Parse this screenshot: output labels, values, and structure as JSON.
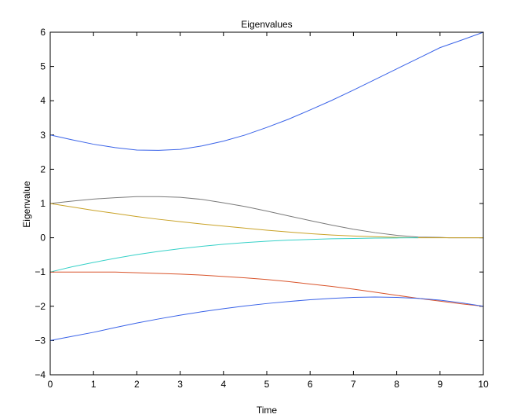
{
  "chart_data": {
    "type": "line",
    "title": "Eigenvalues",
    "xlabel": "Time",
    "ylabel": "Eigenvalue",
    "xlim": [
      0,
      10
    ],
    "ylim": [
      -4,
      6
    ],
    "xticks": [
      0,
      1,
      2,
      3,
      4,
      5,
      6,
      7,
      8,
      9,
      10
    ],
    "yticks": [
      -4,
      -3,
      -2,
      -1,
      0,
      1,
      2,
      3,
      4,
      5,
      6
    ],
    "grid": false,
    "legend": "none",
    "series": [
      {
        "color": "#3a63e8",
        "x": [
          0,
          0.5,
          1,
          1.5,
          2,
          2.5,
          3,
          3.5,
          4,
          4.5,
          5,
          5.5,
          6,
          6.5,
          7,
          7.5,
          8,
          8.5,
          9,
          9.5,
          10
        ],
        "y": [
          3.0,
          2.86,
          2.73,
          2.63,
          2.56,
          2.55,
          2.58,
          2.68,
          2.82,
          3.0,
          3.22,
          3.46,
          3.73,
          4.01,
          4.31,
          4.62,
          4.93,
          5.24,
          5.55,
          5.77,
          6.0
        ]
      },
      {
        "color": "#7a7a7a",
        "x": [
          0,
          0.5,
          1,
          1.5,
          2,
          2.5,
          3,
          3.5,
          4,
          4.5,
          5,
          5.5,
          6,
          6.5,
          7,
          7.5,
          8,
          8.5,
          9,
          9.2,
          10
        ],
        "y": [
          1.0,
          1.07,
          1.13,
          1.17,
          1.2,
          1.2,
          1.18,
          1.12,
          1.02,
          0.91,
          0.78,
          0.64,
          0.5,
          0.37,
          0.25,
          0.15,
          0.07,
          0.02,
          0.01,
          0.0,
          0.0
        ]
      },
      {
        "color": "#c9a227",
        "x": [
          0,
          0.5,
          1,
          1.5,
          2,
          2.5,
          3,
          3.5,
          4,
          4.5,
          5,
          5.5,
          6,
          6.5,
          7,
          7.5,
          8,
          8.5,
          9,
          9.5,
          10
        ],
        "y": [
          1.0,
          0.9,
          0.8,
          0.71,
          0.62,
          0.54,
          0.47,
          0.4,
          0.34,
          0.28,
          0.22,
          0.17,
          0.12,
          0.08,
          0.05,
          0.03,
          0.01,
          0.0,
          0.0,
          0.0,
          0.0
        ]
      },
      {
        "color": "#37d1c8",
        "x": [
          0,
          0.5,
          1,
          1.5,
          2,
          2.5,
          3,
          3.5,
          4,
          4.5,
          5,
          5.5,
          6,
          6.5,
          7,
          7.5,
          8,
          8.5
        ],
        "y": [
          -1.0,
          -0.85,
          -0.72,
          -0.6,
          -0.49,
          -0.4,
          -0.32,
          -0.25,
          -0.19,
          -0.14,
          -0.1,
          -0.07,
          -0.05,
          -0.03,
          -0.02,
          -0.01,
          -0.005,
          0.0
        ]
      },
      {
        "color": "#d9542b",
        "x": [
          0,
          0.5,
          1,
          1.5,
          2,
          2.5,
          3,
          3.5,
          4,
          4.5,
          5,
          5.5,
          6,
          6.5,
          7,
          7.5,
          8,
          8.5,
          9,
          9.5,
          10
        ],
        "y": [
          -1.0,
          -1.0,
          -1.0,
          -1.0,
          -1.02,
          -1.04,
          -1.06,
          -1.09,
          -1.13,
          -1.17,
          -1.22,
          -1.28,
          -1.35,
          -1.42,
          -1.5,
          -1.59,
          -1.68,
          -1.77,
          -1.85,
          -1.93,
          -2.0
        ]
      },
      {
        "color": "#3a63e8",
        "x": [
          0,
          0.5,
          1,
          1.5,
          2,
          2.5,
          3,
          3.5,
          4,
          4.5,
          5,
          5.5,
          6,
          6.5,
          7,
          7.5,
          8,
          8.5,
          9,
          9.5,
          10
        ],
        "y": [
          -3.0,
          -2.88,
          -2.76,
          -2.62,
          -2.49,
          -2.37,
          -2.26,
          -2.16,
          -2.07,
          -1.99,
          -1.92,
          -1.86,
          -1.81,
          -1.77,
          -1.74,
          -1.73,
          -1.74,
          -1.77,
          -1.82,
          -1.9,
          -2.0
        ]
      }
    ]
  }
}
